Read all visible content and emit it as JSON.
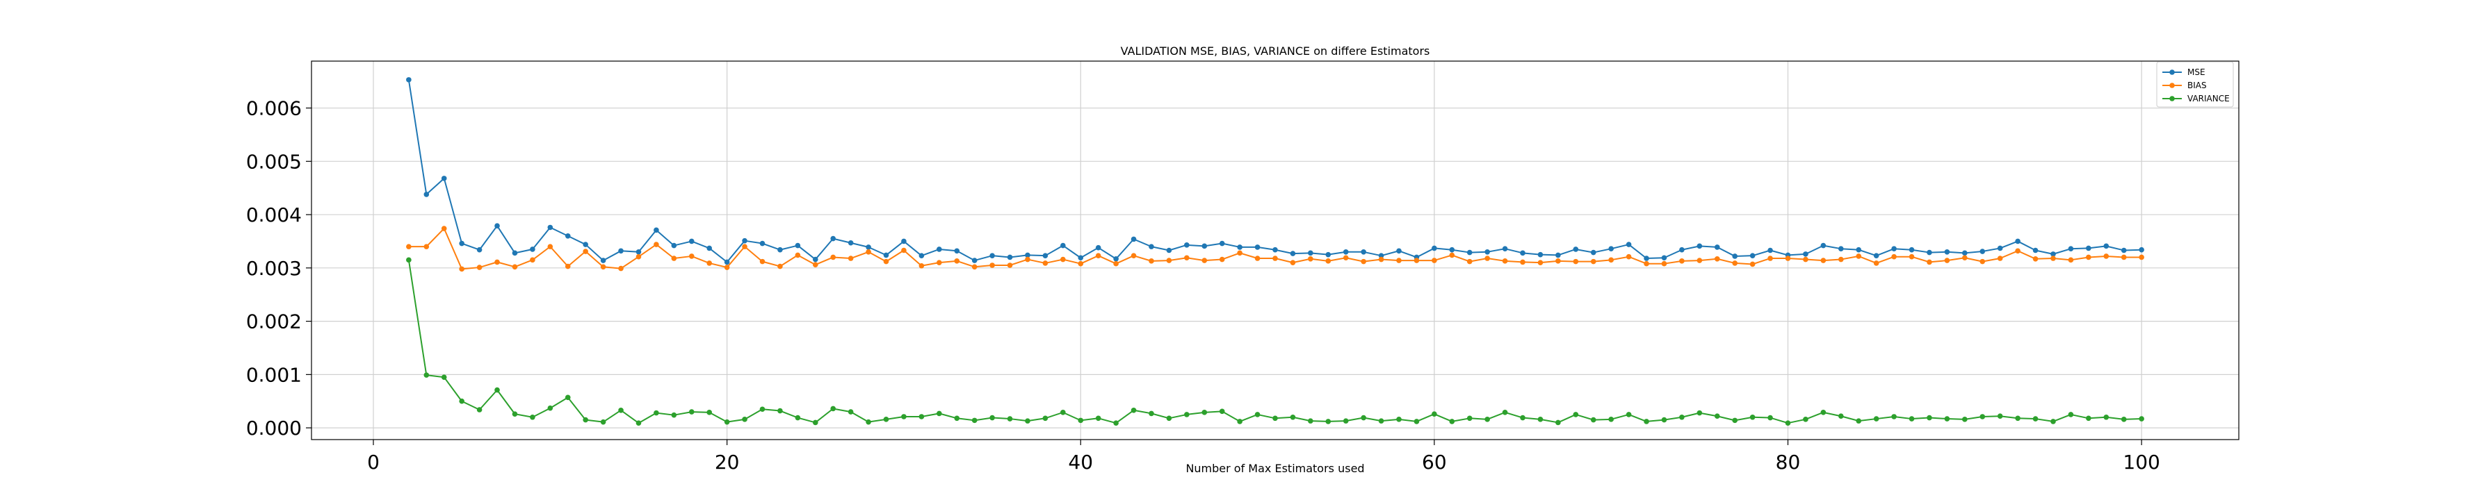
{
  "chart_data": {
    "type": "line",
    "title": "VALIDATION MSE, BIAS, VARIANCE on differe Estimators",
    "xlabel": "Number of Max Estimators used",
    "ylabel": "",
    "xlim": [
      -3.5,
      105.5
    ],
    "ylim": [
      -0.00022,
      0.00688
    ],
    "x_ticks": [
      0,
      20,
      40,
      60,
      80,
      100
    ],
    "y_ticks": [
      0.0,
      0.001,
      0.002,
      0.003,
      0.004,
      0.005,
      0.006
    ],
    "x_tick_labels": [
      "0",
      "20",
      "40",
      "60",
      "80",
      "100"
    ],
    "y_tick_labels": [
      "0.000",
      "0.001",
      "0.002",
      "0.003",
      "0.004",
      "0.005",
      "0.006"
    ],
    "grid": true,
    "legend_position": "top-right",
    "x_start": 2,
    "series": [
      {
        "name": "MSE",
        "color": "#1f77b4",
        "values": [
          0.00653,
          0.00438,
          0.00468,
          0.00346,
          0.00334,
          0.00379,
          0.00328,
          0.00335,
          0.00376,
          0.0036,
          0.00344,
          0.00314,
          0.00332,
          0.0033,
          0.00371,
          0.00342,
          0.0035,
          0.00337,
          0.00311,
          0.00351,
          0.00346,
          0.00334,
          0.00342,
          0.00316,
          0.00355,
          0.00347,
          0.00339,
          0.00324,
          0.0035,
          0.00323,
          0.00335,
          0.00332,
          0.00314,
          0.00323,
          0.0032,
          0.00324,
          0.00323,
          0.00342,
          0.00319,
          0.00338,
          0.00317,
          0.00354,
          0.0034,
          0.00333,
          0.00343,
          0.00341,
          0.00346,
          0.00339,
          0.00339,
          0.00334,
          0.00327,
          0.00328,
          0.00325,
          0.0033,
          0.0033,
          0.00323,
          0.00332,
          0.0032,
          0.00337,
          0.00334,
          0.00329,
          0.0033,
          0.00336,
          0.00328,
          0.00325,
          0.00324,
          0.00335,
          0.00329,
          0.00336,
          0.00344,
          0.00318,
          0.00319,
          0.00334,
          0.00341,
          0.00339,
          0.00322,
          0.00323,
          0.00333,
          0.00324,
          0.00326,
          0.00342,
          0.00336,
          0.00334,
          0.00323,
          0.00336,
          0.00334,
          0.00329,
          0.0033,
          0.00328,
          0.00331,
          0.00337,
          0.0035,
          0.00333,
          0.00326,
          0.00336,
          0.00337,
          0.00341,
          0.00333,
          0.00334
        ]
      },
      {
        "name": "BIAS",
        "color": "#ff7f0e",
        "values": [
          0.0034,
          0.0034,
          0.00374,
          0.00298,
          0.00301,
          0.00311,
          0.00302,
          0.00315,
          0.0034,
          0.00303,
          0.00331,
          0.00302,
          0.00299,
          0.00321,
          0.00344,
          0.00318,
          0.00322,
          0.00309,
          0.00301,
          0.0034,
          0.00312,
          0.00303,
          0.00324,
          0.00306,
          0.0032,
          0.00318,
          0.0033,
          0.00312,
          0.00333,
          0.00304,
          0.0031,
          0.00313,
          0.00302,
          0.00305,
          0.00305,
          0.00316,
          0.00309,
          0.00316,
          0.00308,
          0.00323,
          0.00308,
          0.00323,
          0.00313,
          0.00314,
          0.00319,
          0.00314,
          0.00316,
          0.00328,
          0.00318,
          0.00318,
          0.0031,
          0.00317,
          0.00313,
          0.00319,
          0.00312,
          0.00316,
          0.00314,
          0.00314,
          0.00314,
          0.00324,
          0.00312,
          0.00318,
          0.00313,
          0.00311,
          0.0031,
          0.00313,
          0.00312,
          0.00312,
          0.00315,
          0.00321,
          0.00308,
          0.00308,
          0.00313,
          0.00314,
          0.00317,
          0.00309,
          0.00307,
          0.00318,
          0.00318,
          0.00316,
          0.00314,
          0.00316,
          0.00322,
          0.00309,
          0.00321,
          0.00321,
          0.00311,
          0.00314,
          0.00319,
          0.00312,
          0.00318,
          0.00332,
          0.00317,
          0.00318,
          0.00315,
          0.0032,
          0.00322,
          0.0032,
          0.0032
        ]
      },
      {
        "name": "VARIANCE",
        "color": "#2ca02c",
        "values": [
          0.00315,
          0.00099,
          0.00095,
          0.0005,
          0.00034,
          0.00071,
          0.00026,
          0.0002,
          0.00037,
          0.00057,
          0.00015,
          0.00011,
          0.00033,
          9e-05,
          0.00028,
          0.00024,
          0.0003,
          0.00029,
          0.00011,
          0.00016,
          0.00035,
          0.00032,
          0.00019,
          0.0001,
          0.00036,
          0.0003,
          0.00011,
          0.00016,
          0.00021,
          0.00021,
          0.00027,
          0.00018,
          0.00014,
          0.00019,
          0.00017,
          0.00013,
          0.00018,
          0.00029,
          0.00014,
          0.00018,
          9e-05,
          0.00033,
          0.00027,
          0.00018,
          0.00025,
          0.00029,
          0.00031,
          0.00012,
          0.00025,
          0.00018,
          0.0002,
          0.00013,
          0.00012,
          0.00013,
          0.00019,
          0.00013,
          0.00016,
          0.00012,
          0.00026,
          0.00012,
          0.00018,
          0.00016,
          0.00029,
          0.00019,
          0.00016,
          0.0001,
          0.00025,
          0.00015,
          0.00016,
          0.00025,
          0.00012,
          0.00015,
          0.0002,
          0.00028,
          0.00022,
          0.00014,
          0.0002,
          0.00019,
          9e-05,
          0.00016,
          0.00029,
          0.00022,
          0.00013,
          0.00017,
          0.00021,
          0.00017,
          0.00019,
          0.00017,
          0.00016,
          0.00021,
          0.00022,
          0.00018,
          0.00017,
          0.00012,
          0.00025,
          0.00018,
          0.0002,
          0.00016,
          0.00017
        ]
      }
    ]
  }
}
